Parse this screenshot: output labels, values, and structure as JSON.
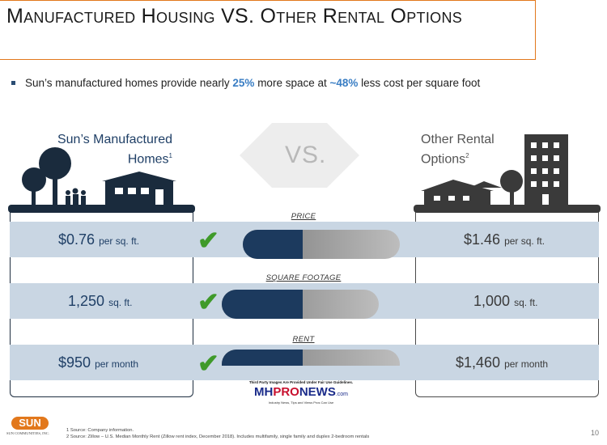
{
  "title": "Manufactured Housing VS. Other Rental Options",
  "bullet": {
    "prefix": "Sun’s manufactured homes provide nearly ",
    "highlight1": "25%",
    "middle": " more space at ",
    "highlight2": "~48%",
    "suffix": " less cost per square foot"
  },
  "left_label": {
    "line1": "Sun’s Manufactured",
    "line2": "Homes",
    "sup": "1"
  },
  "right_label": {
    "line1": "Other Rental",
    "line2": "Options",
    "sup": "2"
  },
  "vs": "VS.",
  "rows": [
    {
      "category": "PRICE",
      "left_value": "$0.76",
      "left_unit": "per sq. ft.",
      "right_value": "$1.46",
      "right_unit": "per sq. ft."
    },
    {
      "category": "SQUARE FOOTAGE",
      "left_value": "1,250",
      "left_unit": "sq. ft.",
      "right_value": "1,000",
      "right_unit": "sq. ft."
    },
    {
      "category": "RENT",
      "left_value": "$950",
      "left_unit": "per month",
      "right_value": "$1,460",
      "right_unit": "per month"
    }
  ],
  "check_glyph": "✔",
  "watermark": {
    "top": "Third Party Images Are Provided Under Fair Use Guidelines.",
    "brand_mh": "MH",
    "brand_pro": "PRO",
    "brand_news": "NEWS",
    "brand_com": ".com",
    "tagline": "Industry News, Tips and Views Pros Can Use"
  },
  "footnotes": {
    "f1": "1  Source: Company information.",
    "f2": "2  Source: Zillow – U.S. Median Monthly Rent (Zillow rent index, December 2018). Includes multifamily, single family and duplex 2-bedroom rentals"
  },
  "logo": {
    "name": "SUN",
    "sub": "SUN COMMUNITIES, INC."
  },
  "page_number": "10",
  "colors": {
    "accent": "#e2781c",
    "navy": "#1a2b3d",
    "check": "#3f9a2a",
    "band": "#c9d6e3",
    "highlight": "#3a7ec4"
  }
}
